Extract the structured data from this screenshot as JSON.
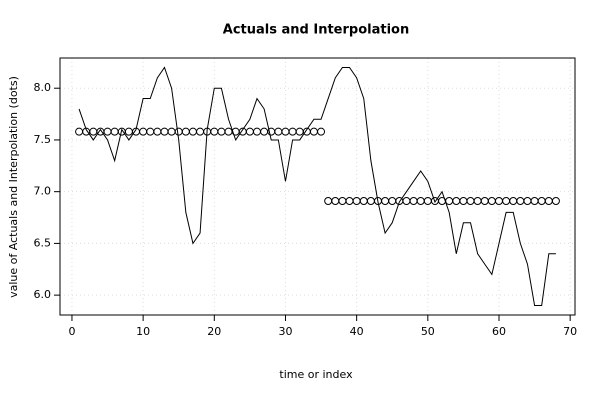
{
  "chart_data": {
    "type": "line",
    "title": "Actuals and Interpolation",
    "xlabel": "time or index",
    "ylabel": "value of Actuals and Interpolation (dots)",
    "x": [
      1,
      2,
      3,
      4,
      5,
      6,
      7,
      8,
      9,
      10,
      11,
      12,
      13,
      14,
      15,
      16,
      17,
      18,
      19,
      20,
      21,
      22,
      23,
      24,
      25,
      26,
      27,
      28,
      29,
      30,
      31,
      32,
      33,
      34,
      35,
      36,
      37,
      38,
      39,
      40,
      41,
      42,
      43,
      44,
      45,
      46,
      47,
      48,
      49,
      50,
      51,
      52,
      53,
      54,
      55,
      56,
      57,
      58,
      59,
      60,
      61,
      62,
      63,
      64,
      65,
      66,
      67,
      68
    ],
    "series": [
      {
        "style": "line",
        "color": "#000000",
        "values": [
          7.8,
          7.6,
          7.5,
          7.6,
          7.5,
          7.3,
          7.6,
          7.5,
          7.6,
          7.9,
          7.9,
          8.1,
          8.2,
          8.0,
          7.5,
          6.8,
          6.5,
          6.6,
          7.6,
          8.0,
          8.0,
          7.7,
          7.5,
          7.6,
          7.7,
          7.9,
          7.8,
          7.5,
          7.5,
          7.1,
          7.5,
          7.5,
          7.6,
          7.7,
          7.7,
          7.9,
          8.1,
          8.2,
          8.2,
          8.1,
          7.9,
          7.3,
          6.9,
          6.6,
          6.7,
          6.9,
          7.0,
          7.1,
          7.2,
          7.1,
          6.9,
          7.0,
          6.8,
          6.4,
          6.7,
          6.7,
          6.4,
          6.3,
          6.2,
          6.5,
          6.8,
          6.8,
          6.5,
          6.3,
          5.9,
          5.9,
          6.4,
          6.4
        ]
      },
      {
        "style": "points",
        "color": "#000000",
        "values": [
          7.58,
          7.58,
          7.58,
          7.58,
          7.58,
          7.58,
          7.58,
          7.58,
          7.58,
          7.58,
          7.58,
          7.58,
          7.58,
          7.58,
          7.58,
          7.58,
          7.58,
          7.58,
          7.58,
          7.58,
          7.58,
          7.58,
          7.58,
          7.58,
          7.58,
          7.58,
          7.58,
          7.58,
          7.58,
          7.58,
          7.58,
          7.58,
          7.58,
          7.58,
          7.58,
          6.91,
          6.91,
          6.91,
          6.91,
          6.91,
          6.91,
          6.91,
          6.91,
          6.91,
          6.91,
          6.91,
          6.91,
          6.91,
          6.91,
          6.91,
          6.91,
          6.91,
          6.91,
          6.91,
          6.91,
          6.91,
          6.91,
          6.91,
          6.91,
          6.91,
          6.91,
          6.91,
          6.91,
          6.91,
          6.91,
          6.91,
          6.91,
          6.91
        ]
      }
    ],
    "xlim": [
      -1.68,
      70.68
    ],
    "xticks": [
      0,
      10,
      20,
      30,
      40,
      50,
      60,
      70
    ],
    "ylim": [
      5.808,
      8.292
    ],
    "yticks": [
      {
        "value": 6,
        "label": "6.0"
      },
      6.5,
      {
        "value": 7,
        "label": "7.0"
      },
      7.5,
      {
        "value": 8,
        "label": "8.0"
      }
    ],
    "grid": true
  }
}
